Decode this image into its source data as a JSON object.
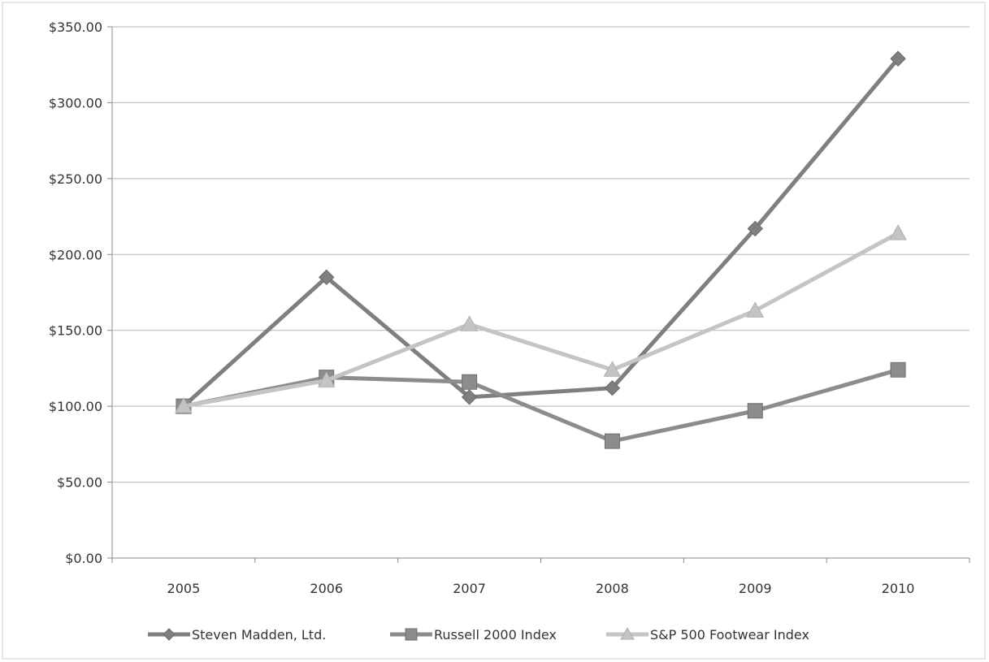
{
  "chart_data": {
    "type": "line",
    "title": "",
    "xlabel": "",
    "ylabel": "",
    "categories": [
      "2005",
      "2006",
      "2007",
      "2008",
      "2009",
      "2010"
    ],
    "ylim": [
      0,
      350
    ],
    "yticks": [
      "$0.00",
      "$50.00",
      "$100.00",
      "$150.00",
      "$200.00",
      "$250.00",
      "$300.00",
      "$350.00"
    ],
    "grid": true,
    "legend_position": "bottom",
    "series": [
      {
        "name": "Steven Madden, Ltd.",
        "marker": "diamond",
        "color": "#7f7f7f",
        "values": [
          100,
          185,
          106,
          112,
          217,
          329
        ]
      },
      {
        "name": "Russell 2000 Index",
        "marker": "square",
        "color": "#8c8c8c",
        "values": [
          100,
          119,
          116,
          77,
          97,
          124
        ]
      },
      {
        "name": "S&P 500 Footwear Index",
        "marker": "triangle",
        "color": "#c4c4c4",
        "values": [
          100,
          117,
          154,
          124,
          163,
          214
        ]
      }
    ]
  }
}
